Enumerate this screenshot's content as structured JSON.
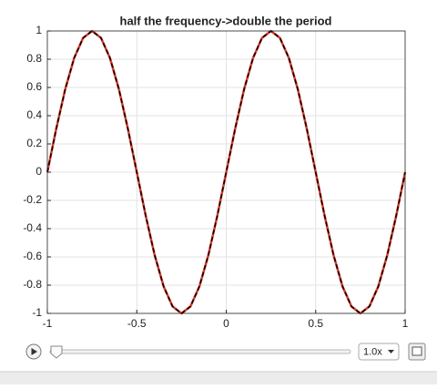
{
  "chart_data": {
    "type": "line",
    "title": "half the frequency->double the period",
    "x": [
      -1,
      -0.95,
      -0.9,
      -0.85,
      -0.8,
      -0.75,
      -0.7,
      -0.65,
      -0.6,
      -0.55,
      -0.5,
      -0.45,
      -0.4,
      -0.35,
      -0.3,
      -0.25,
      -0.2,
      -0.15,
      -0.1,
      -0.05,
      0,
      0.05,
      0.1,
      0.15,
      0.2,
      0.25,
      0.3,
      0.35,
      0.4,
      0.45,
      0.5,
      0.55,
      0.6,
      0.65,
      0.7,
      0.75,
      0.8,
      0.85,
      0.9,
      0.95,
      1
    ],
    "series": [
      {
        "color": "#d93a2b",
        "dashed": false,
        "values": [
          0,
          0.309,
          0.5878,
          0.809,
          0.9511,
          1,
          0.9511,
          0.809,
          0.5878,
          0.309,
          0,
          -0.309,
          -0.5878,
          -0.809,
          -0.9511,
          -1,
          -0.9511,
          -0.809,
          -0.5878,
          -0.309,
          0,
          0.309,
          0.5878,
          0.809,
          0.9511,
          1,
          0.9511,
          0.809,
          0.5878,
          0.309,
          0,
          -0.309,
          -0.5878,
          -0.809,
          -0.9511,
          -1,
          -0.9511,
          -0.809,
          -0.5878,
          -0.309,
          0
        ]
      },
      {
        "color": "#000000",
        "dashed": true,
        "values": [
          0,
          0.309,
          0.5878,
          0.809,
          0.9511,
          1,
          0.9511,
          0.809,
          0.5878,
          0.309,
          0,
          -0.309,
          -0.5878,
          -0.809,
          -0.9511,
          -1,
          -0.9511,
          -0.809,
          -0.5878,
          -0.309,
          0,
          0.309,
          0.5878,
          0.809,
          0.9511,
          1,
          0.9511,
          0.809,
          0.5878,
          0.309,
          0,
          -0.309,
          -0.5878,
          -0.809,
          -0.9511,
          -1,
          -0.9511,
          -0.809,
          -0.5878,
          -0.309,
          0
        ]
      }
    ],
    "xlim": [
      -1,
      1
    ],
    "xticks": [
      -1,
      -0.5,
      0,
      0.5,
      1
    ],
    "ylim": [
      -1,
      1
    ],
    "yticks": [
      -1,
      -0.8,
      -0.6,
      -0.4,
      -0.2,
      0,
      0.2,
      0.4,
      0.6,
      0.8,
      1
    ],
    "grid": true
  },
  "player": {
    "speed": "1.0x"
  }
}
